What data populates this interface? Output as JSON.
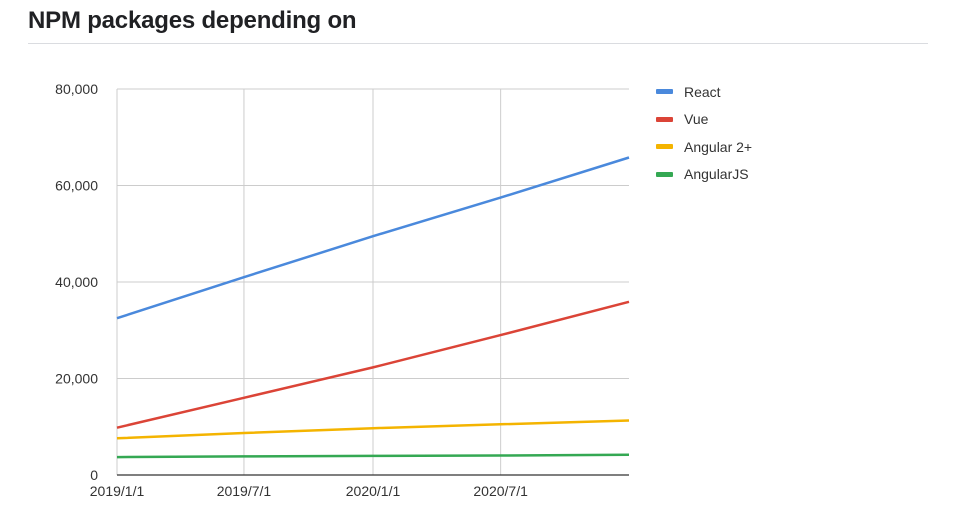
{
  "title": "NPM packages depending on",
  "chart_data": {
    "type": "line",
    "title": "NPM packages depending on",
    "xlabel": "",
    "ylabel": "",
    "x_tick_labels": [
      "2019/1/1",
      "2019/7/1",
      "2020/1/1",
      "2020/7/1"
    ],
    "x_range": [
      "2019/1/1",
      "2020/12/31"
    ],
    "ylim": [
      0,
      80000
    ],
    "y_tick_labels": [
      "0",
      "20,000",
      "40,000",
      "60,000",
      "80,000"
    ],
    "y_ticks": [
      0,
      20000,
      40000,
      60000,
      80000
    ],
    "grid": true,
    "legend_position": "right",
    "series": [
      {
        "name": "React",
        "color": "#4a89dc",
        "points": [
          {
            "x": "2019/1/1",
            "y": 32500
          },
          {
            "x": "2019/7/1",
            "y": 41000
          },
          {
            "x": "2020/1/1",
            "y": 49500
          },
          {
            "x": "2020/7/1",
            "y": 57500
          },
          {
            "x": "2020/12/31",
            "y": 65800
          }
        ]
      },
      {
        "name": "Vue",
        "color": "#db4437",
        "points": [
          {
            "x": "2019/1/1",
            "y": 9800
          },
          {
            "x": "2019/7/1",
            "y": 16000
          },
          {
            "x": "2020/1/1",
            "y": 22300
          },
          {
            "x": "2020/7/1",
            "y": 29000
          },
          {
            "x": "2020/12/31",
            "y": 35900
          }
        ]
      },
      {
        "name": "Angular 2+",
        "color": "#f4b400",
        "points": [
          {
            "x": "2019/1/1",
            "y": 7600
          },
          {
            "x": "2019/7/1",
            "y": 8700
          },
          {
            "x": "2020/1/1",
            "y": 9700
          },
          {
            "x": "2020/7/1",
            "y": 10500
          },
          {
            "x": "2020/12/31",
            "y": 11300
          }
        ]
      },
      {
        "name": "AngularJS",
        "color": "#34a853",
        "points": [
          {
            "x": "2019/1/1",
            "y": 3700
          },
          {
            "x": "2019/7/1",
            "y": 3850
          },
          {
            "x": "2020/1/1",
            "y": 3950
          },
          {
            "x": "2020/7/1",
            "y": 4050
          },
          {
            "x": "2020/12/31",
            "y": 4200
          }
        ]
      }
    ]
  }
}
